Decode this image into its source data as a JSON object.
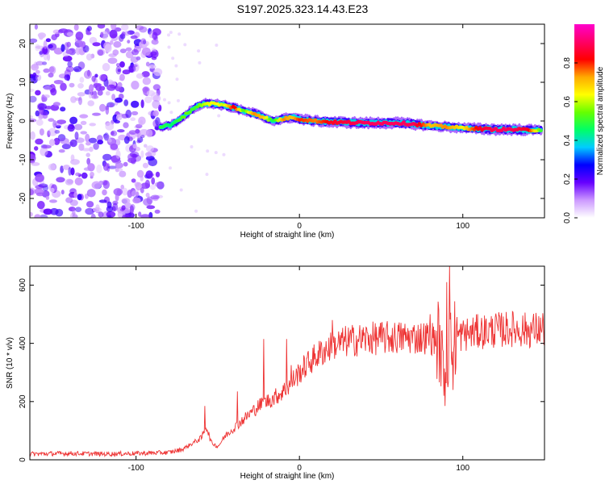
{
  "title": "S197.2025.323.14.43.E23",
  "chart_data": [
    {
      "type": "heatmap",
      "xlabel": "Height of straight line (km)",
      "ylabel": "Frequency (Hz)",
      "xlim": [
        -165,
        150
      ],
      "ylim": [
        -25,
        25
      ],
      "xticks": [
        -100,
        0,
        100
      ],
      "yticks": [
        -20,
        -10,
        0,
        10,
        20
      ],
      "colorbar": {
        "label": "Normalized spectral amplitude",
        "range": [
          0,
          1
        ],
        "ticks": [
          0.0,
          0.2,
          0.4,
          0.6,
          0.8
        ],
        "colors": [
          "#ffffff",
          "#cc99ff",
          "#6600ff",
          "#0000ff",
          "#00ccff",
          "#00ff66",
          "#66ff00",
          "#ffff00",
          "#ffaa00",
          "#ff0000",
          "#ff0066",
          "#ff00cc"
        ]
      },
      "ridge": {
        "x": [
          -85,
          -78,
          -70,
          -64,
          -58,
          -52,
          -46,
          -40,
          -34,
          -28,
          -22,
          -16,
          -10,
          -4,
          0,
          10,
          20,
          40,
          60,
          70,
          80,
          90,
          100,
          110,
          120,
          130,
          140,
          148
        ],
        "freq": [
          -1.5,
          -1,
          1.5,
          3.5,
          4.5,
          4.5,
          4,
          3.5,
          2.5,
          2,
          1,
          0,
          0.5,
          1,
          0.5,
          0,
          -0.3,
          -0.5,
          -0.5,
          -0.8,
          -1.2,
          -1.5,
          -1.8,
          -2,
          -2.2,
          -2.2,
          -2.3,
          -2.3
        ],
        "amplitude": [
          0.5,
          0.45,
          0.55,
          0.5,
          0.6,
          0.65,
          0.6,
          0.85,
          0.5,
          0.75,
          0.7,
          0.45,
          0.75,
          0.7,
          0.8,
          0.75,
          0.85,
          0.9,
          0.9,
          0.9,
          0.7,
          0.75,
          0.65,
          0.85,
          0.9,
          0.9,
          0.85,
          0.5
        ]
      }
    },
    {
      "type": "line",
      "xlabel": "Height of straight line (km)",
      "ylabel": "SNR (10 * v/v)",
      "xlim": [
        -165,
        150
      ],
      "ylim": [
        0,
        665
      ],
      "xticks": [
        -100,
        0,
        100
      ],
      "yticks": [
        0,
        200,
        400,
        600
      ],
      "series": [
        {
          "name": "SNR",
          "color": "#ee3333",
          "x": [
            -165,
            -140,
            -120,
            -100,
            -80,
            -72,
            -66,
            -60,
            -57,
            -54,
            -50,
            -45,
            -40,
            -35,
            -30,
            -25,
            -20,
            -15,
            -10,
            -5,
            0,
            5,
            10,
            15,
            20,
            25,
            30,
            40,
            50,
            60,
            70,
            80,
            85,
            88,
            90,
            92,
            95,
            100,
            110,
            120,
            130,
            140,
            150
          ],
          "y": [
            20,
            22,
            20,
            22,
            25,
            35,
            55,
            75,
            115,
            60,
            45,
            85,
            110,
            135,
            160,
            185,
            200,
            215,
            235,
            265,
            300,
            330,
            355,
            375,
            390,
            400,
            408,
            415,
            418,
            420,
            420,
            420,
            410,
            320,
            330,
            380,
            420,
            430,
            440,
            445,
            450,
            445,
            450
          ],
          "spikes": [
            {
              "x": -58,
              "y": 185
            },
            {
              "x": -38,
              "y": 235
            },
            {
              "x": -22,
              "y": 415
            },
            {
              "x": -8,
              "y": 415
            },
            {
              "x": -5,
              "y": 325
            },
            {
              "x": 20,
              "y": 480
            },
            {
              "x": 80,
              "y": 500
            },
            {
              "x": 89,
              "y": 185
            },
            {
              "x": 90,
              "y": 610
            },
            {
              "x": 92,
              "y": 665
            },
            {
              "x": 94,
              "y": 240
            },
            {
              "x": 120,
              "y": 490
            },
            {
              "x": 145,
              "y": 480
            }
          ]
        }
      ]
    }
  ]
}
